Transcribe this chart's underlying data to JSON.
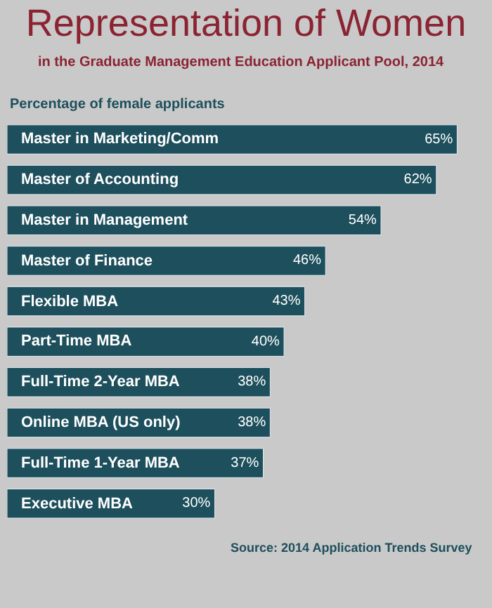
{
  "chart_data": {
    "type": "bar",
    "orientation": "horizontal",
    "title": "Representation of Women",
    "subtitle": "in the Graduate Management Education Applicant Pool, 2014",
    "categories": [
      "Master in Marketing/Comm",
      "Master of Accounting",
      "Master in Management",
      "Master of Finance",
      "Flexible MBA",
      "Part-Time MBA",
      "Full-Time 2-Year MBA",
      "Online MBA (US only)",
      "Full-Time 1-Year MBA",
      "Executive MBA"
    ],
    "values": [
      65,
      62,
      54,
      46,
      43,
      40,
      38,
      38,
      37,
      30
    ],
    "value_labels": [
      "65%",
      "62%",
      "54%",
      "46%",
      "43%",
      "40%",
      "38%",
      "38%",
      "37%",
      "30%"
    ],
    "color": "#1d4f5c",
    "annotations": [
      "Percentage of female applicants",
      "Source: 2014 Application Trends Survey"
    ],
    "legend": false,
    "grid": false
  }
}
